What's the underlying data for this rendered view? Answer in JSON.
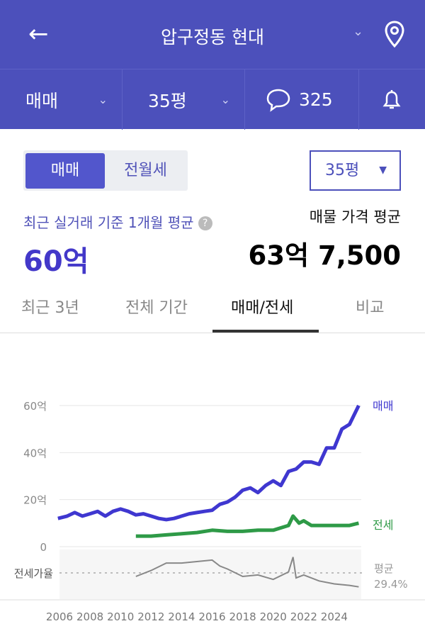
{
  "header": {
    "title": "압구정동 현대",
    "back_icon": "arrow-left-icon",
    "location_icon": "map-pin-icon"
  },
  "subbar": {
    "trade_type": "매매",
    "size": "35평",
    "comments": "325",
    "bell_icon": "bell-icon"
  },
  "toggle": {
    "options": [
      "매매",
      "전월세"
    ],
    "selected": "매매"
  },
  "size_select": {
    "value": "35평"
  },
  "summary": {
    "recent_label": "최근 실거래 기준 1개월 평균",
    "recent_value": "60억",
    "listing_label": "매물 가격 평균",
    "listing_value": "63억 7,500"
  },
  "tabs": [
    {
      "label": "최근 3년"
    },
    {
      "label": "전체 기간"
    },
    {
      "label": "매매/전세",
      "active": true
    },
    {
      "label": "비교"
    }
  ],
  "colors": {
    "brand": "#4c50bb",
    "sale": "#3f37d0",
    "jeonse": "#2e9a47",
    "ratio": "#888888"
  },
  "chart_data": {
    "type": "line",
    "y_ticks": [
      "0",
      "20억",
      "40억",
      "60억"
    ],
    "ylim": [
      0,
      60
    ],
    "x_ticks": [
      "2006",
      "2008",
      "2010",
      "2012",
      "2014",
      "2016",
      "2018",
      "2020",
      "2022",
      "2024"
    ],
    "grid": true,
    "series": [
      {
        "name": "매매",
        "unit": "억",
        "points": [
          [
            2005.9,
            12
          ],
          [
            2006.5,
            13
          ],
          [
            2007,
            14.5
          ],
          [
            2007.5,
            13
          ],
          [
            2008,
            14
          ],
          [
            2008.5,
            15
          ],
          [
            2009,
            13
          ],
          [
            2009.5,
            15
          ],
          [
            2010,
            16
          ],
          [
            2010.5,
            15
          ],
          [
            2011,
            13.5
          ],
          [
            2011.5,
            14
          ],
          [
            2012,
            13
          ],
          [
            2012.5,
            12
          ],
          [
            2013,
            11.5
          ],
          [
            2013.5,
            12
          ],
          [
            2014,
            13
          ],
          [
            2014.5,
            14
          ],
          [
            2015,
            14.5
          ],
          [
            2015.5,
            15
          ],
          [
            2016,
            15.5
          ],
          [
            2016.5,
            18
          ],
          [
            2017,
            19
          ],
          [
            2017.5,
            21
          ],
          [
            2018,
            24
          ],
          [
            2018.5,
            25
          ],
          [
            2019,
            23
          ],
          [
            2019.5,
            26
          ],
          [
            2020,
            28
          ],
          [
            2020.5,
            26
          ],
          [
            2021,
            32
          ],
          [
            2021.5,
            33
          ],
          [
            2022,
            36
          ],
          [
            2022.5,
            36
          ],
          [
            2023,
            35
          ],
          [
            2023.5,
            42
          ],
          [
            2024,
            42
          ],
          [
            2024.5,
            50
          ],
          [
            2025,
            52
          ],
          [
            2025.6,
            60
          ]
        ]
      },
      {
        "name": "전세",
        "unit": "억",
        "points": [
          [
            2011,
            4.5
          ],
          [
            2012,
            4.5
          ],
          [
            2013,
            5
          ],
          [
            2014,
            5.5
          ],
          [
            2015,
            6
          ],
          [
            2016,
            7
          ],
          [
            2017,
            6.5
          ],
          [
            2018,
            6.5
          ],
          [
            2019,
            7
          ],
          [
            2020,
            7
          ],
          [
            2021,
            9
          ],
          [
            2021.3,
            13
          ],
          [
            2021.7,
            10
          ],
          [
            2022,
            11
          ],
          [
            2022.5,
            9
          ],
          [
            2023,
            9
          ],
          [
            2024,
            9
          ],
          [
            2025,
            9
          ],
          [
            2025.6,
            10
          ]
        ]
      }
    ],
    "ratio": {
      "label": "전세가율",
      "avg_label": "평균",
      "avg_value": "29.4%",
      "avg": 29.4,
      "points": [
        [
          2011,
          27
        ],
        [
          2012,
          31
        ],
        [
          2013,
          36
        ],
        [
          2014,
          36
        ],
        [
          2015,
          37
        ],
        [
          2016,
          38
        ],
        [
          2016.5,
          34
        ],
        [
          2017,
          32
        ],
        [
          2018,
          27
        ],
        [
          2019,
          28
        ],
        [
          2020,
          25
        ],
        [
          2021,
          30
        ],
        [
          2021.3,
          40
        ],
        [
          2021.5,
          26
        ],
        [
          2022,
          28
        ],
        [
          2023,
          24
        ],
        [
          2024,
          22
        ],
        [
          2025,
          21
        ],
        [
          2025.6,
          20
        ]
      ]
    }
  }
}
